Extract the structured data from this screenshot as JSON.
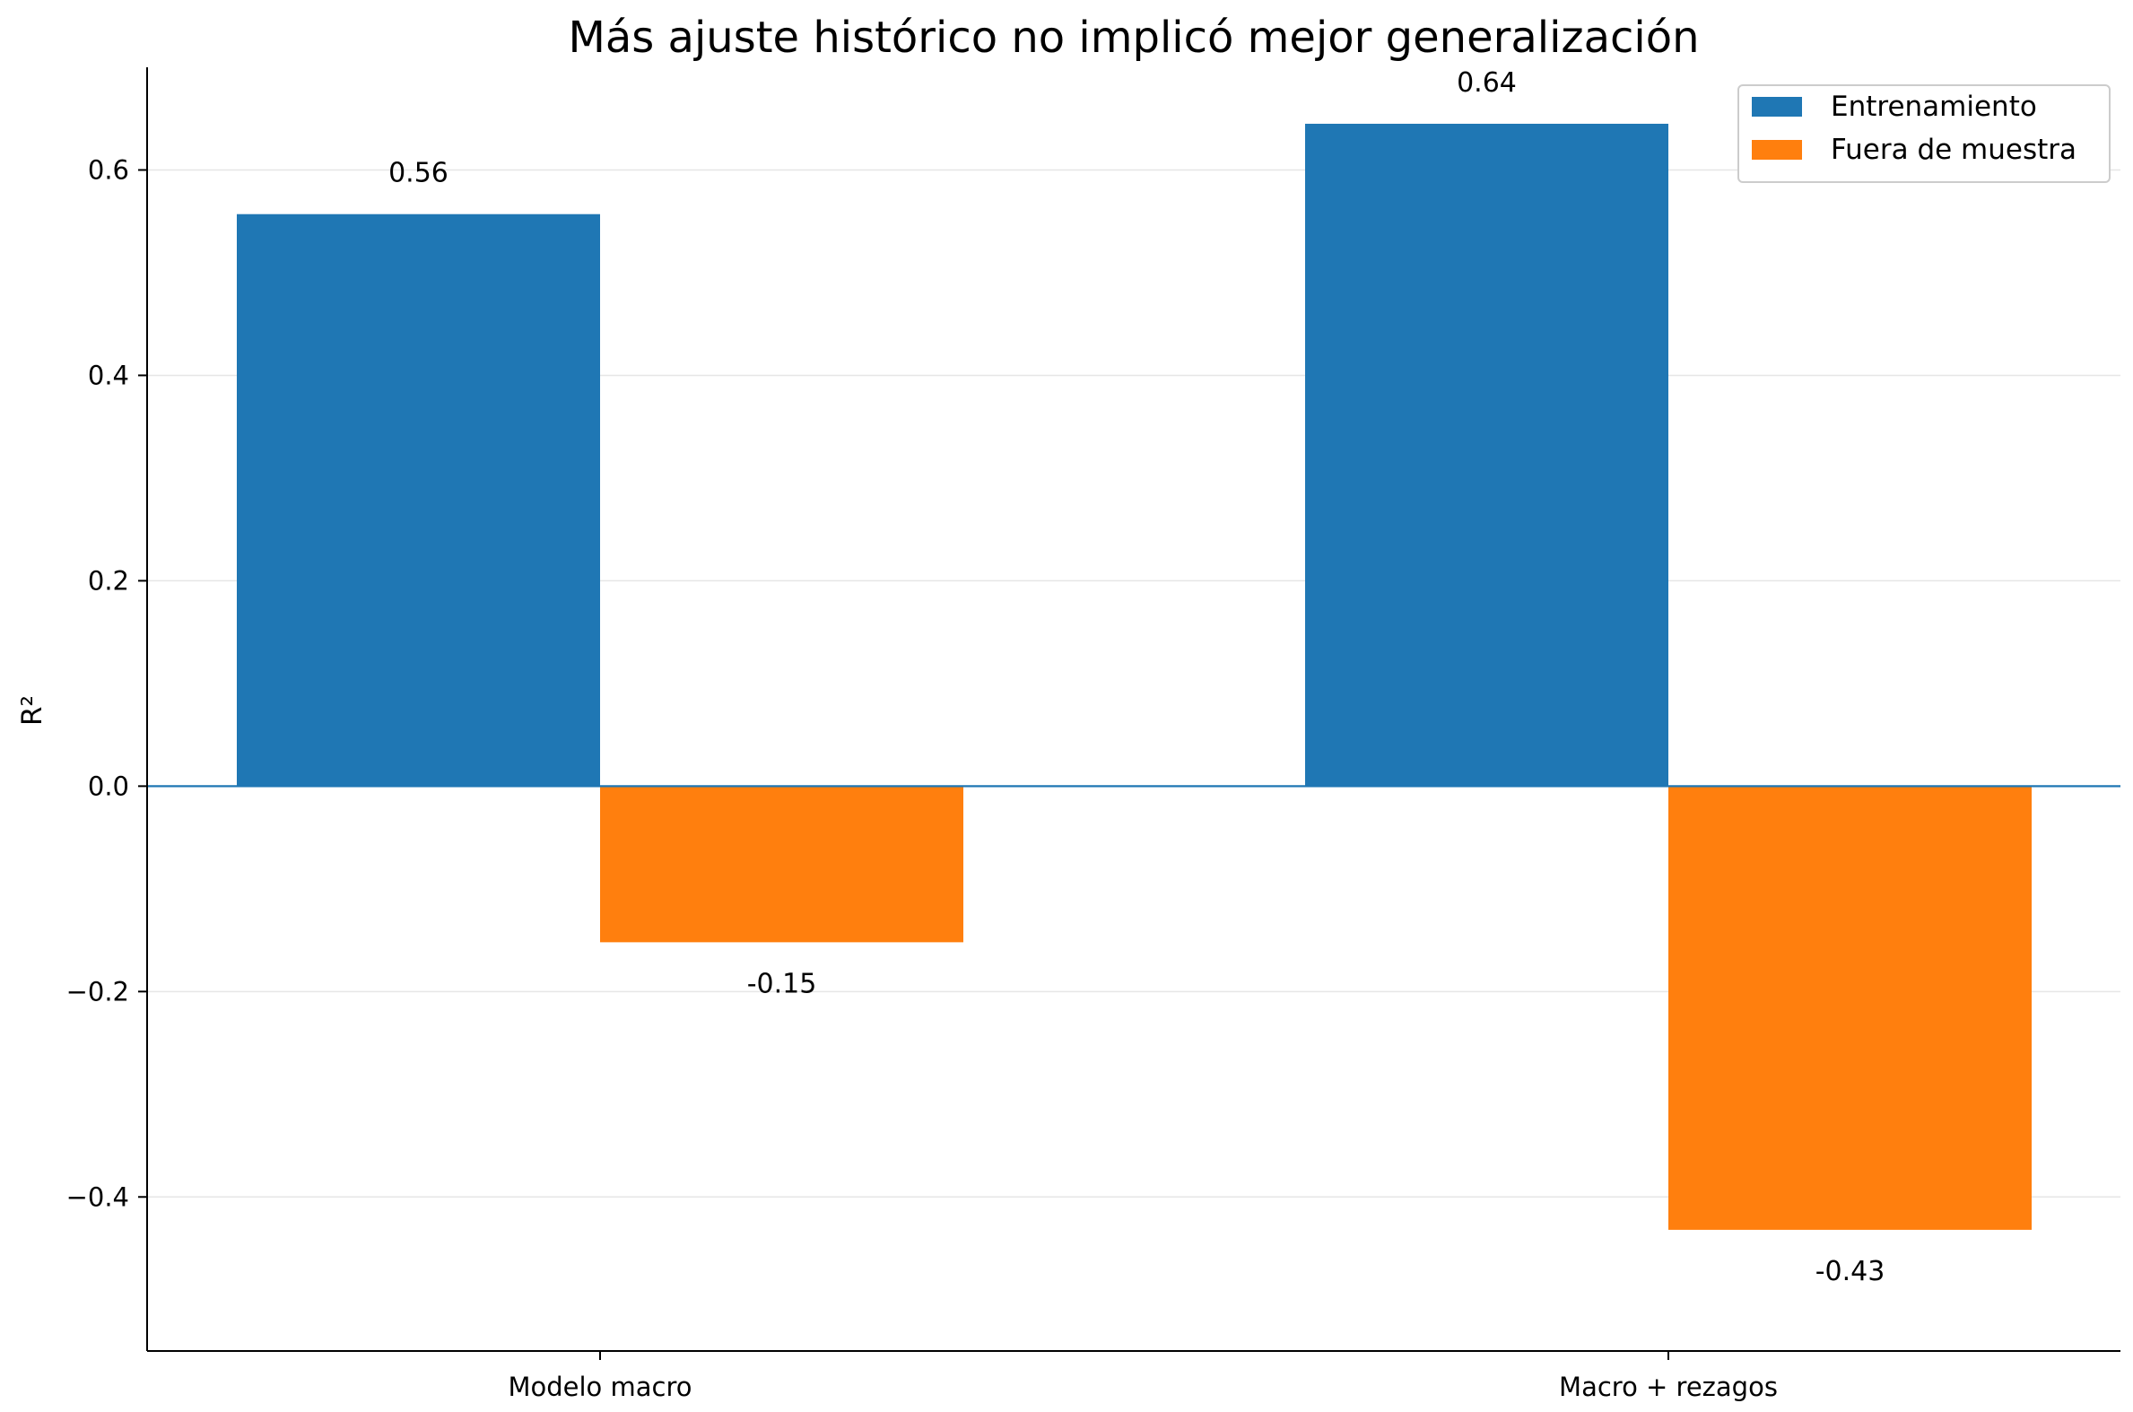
{
  "chart_data": {
    "type": "bar",
    "title": "Más ajuste histórico no implicó mejor generalización",
    "xlabel": "",
    "ylabel": "R²",
    "categories": [
      "Modelo macro",
      "Macro + rezagos"
    ],
    "series": [
      {
        "name": "Entrenamiento",
        "values": [
          0.557,
          0.645
        ],
        "labels": [
          "0.56",
          "0.64"
        ],
        "color": "#1f77b4"
      },
      {
        "name": "Fuera de muestra",
        "values": [
          -0.152,
          -0.432
        ],
        "labels": [
          "-0.15",
          "-0.43"
        ],
        "color": "#ff7f0e"
      }
    ],
    "ylim": [
      -0.55,
      0.7
    ],
    "yticks": [
      -0.4,
      -0.2,
      0.0,
      0.2,
      0.4,
      0.6
    ],
    "ytick_labels": [
      "−0.4",
      "−0.2",
      "0.0",
      "0.2",
      "0.4",
      "0.6"
    ],
    "grid": "horizontal",
    "zero_line_color": "#1f77b4",
    "legend_position": "top-right"
  }
}
